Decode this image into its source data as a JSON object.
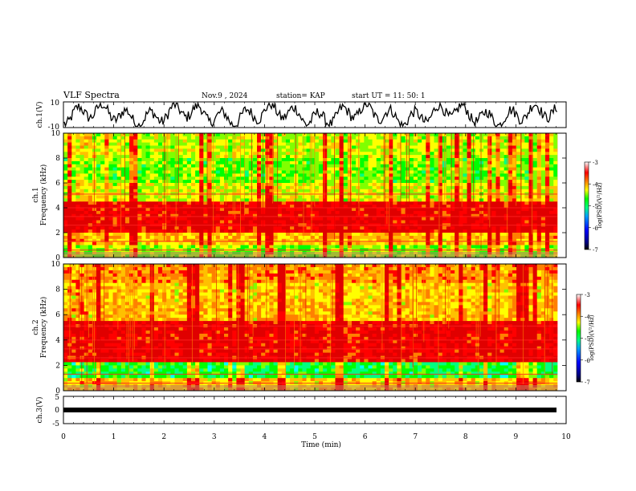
{
  "header": {
    "title": "VLF Spectra",
    "date": "Nov.9  , 2024",
    "station": "station= KAP",
    "start": "start  UT  =   11: 50: 1"
  },
  "chart_data": [
    {
      "id": "ch1-waveform",
      "type": "line",
      "ylabel": "ch.1(V)",
      "ylim": [
        -10,
        10
      ],
      "yticks": [
        "10",
        "-10"
      ],
      "xlim": [
        0,
        10
      ]
    },
    {
      "id": "ch1-spectrogram",
      "type": "heatmap",
      "ylabel": "ch.1\nFrequency  (kHz)",
      "ylabel_line1": "ch.1",
      "ylabel_line2": "Frequency  (kHz)",
      "ylim": [
        0,
        10
      ],
      "yticks": [
        "0",
        "2",
        "4",
        "6",
        "8",
        "10"
      ],
      "xlim": [
        0,
        10
      ],
      "colorbar": {
        "label": "log(PSD)(V²/Hz)",
        "range": [
          -7,
          -3
        ],
        "ticks": [
          "-3",
          "-4",
          "-5",
          "-6",
          "-7"
        ]
      }
    },
    {
      "id": "ch2-spectrogram",
      "type": "heatmap",
      "ylabel_line1": "ch.2",
      "ylabel_line2": "Frequency  (kHz)",
      "ylim": [
        0,
        10
      ],
      "yticks": [
        "0",
        "2",
        "4",
        "6",
        "8",
        "10"
      ],
      "xlim": [
        0,
        10
      ],
      "colorbar": {
        "label": "log(PSD)(V²/Hz)",
        "range": [
          -7,
          -3
        ],
        "ticks": [
          "-3",
          "-4",
          "-5",
          "-6",
          "-7"
        ]
      }
    },
    {
      "id": "ch3-waveform",
      "type": "line",
      "ylabel": "ch.3(V)",
      "ylim": [
        -5,
        5
      ],
      "yticks": [
        "5",
        "0",
        "-5"
      ],
      "xlim": [
        0,
        10
      ],
      "xticks": [
        "0",
        "1",
        "2",
        "3",
        "4",
        "5",
        "6",
        "7",
        "8",
        "9",
        "10"
      ],
      "xlabel": "Time  (min)",
      "values_y": 0
    }
  ],
  "colors": {
    "scale": [
      "#000080",
      "#0000ff",
      "#00a0ff",
      "#00ffff",
      "#00ff80",
      "#00ff00",
      "#80ff00",
      "#ffff00",
      "#ffc000",
      "#ff8000",
      "#ff0000",
      "#e00000",
      "#ffffff"
    ],
    "trace": "#000000"
  }
}
